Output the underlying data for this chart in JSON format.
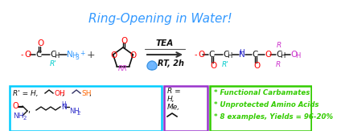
{
  "title": "Ring-Opening in Water!",
  "title_color": "#3399FF",
  "bg_color": "#FFFFFF",
  "arrow_color": "#333333",
  "conditions1": "TEA",
  "conditions2": "RT, 2h",
  "r1_O_color": "#FF0000",
  "r1_NH3_color": "#3399FF",
  "r1_R_color": "#00CCCC",
  "r1_minus_color": "#FF0000",
  "r2_O_color": "#FF0000",
  "r2_R_color": "#CC33CC",
  "prod_O_color": "#FF0000",
  "prod_NH_color": "#3333CC",
  "prod_R1_color": "#00CCCC",
  "prod_R_color": "#CC33CC",
  "prod_OH_color": "#CC33CC",
  "box1_edge": "#00CCFF",
  "box2_edge": "#9933CC",
  "box3_edge": "#33CC00",
  "box3_text_color": "#33CC00",
  "box3_lines": [
    "* Functional Carbamates",
    "* Unprotected Amino Acids",
    "* 8 examples, Yields = 96-20%"
  ],
  "SH_color": "#FF6600",
  "OH_color": "#FF0000",
  "NH2_color": "#3333CC",
  "black": "#111111"
}
